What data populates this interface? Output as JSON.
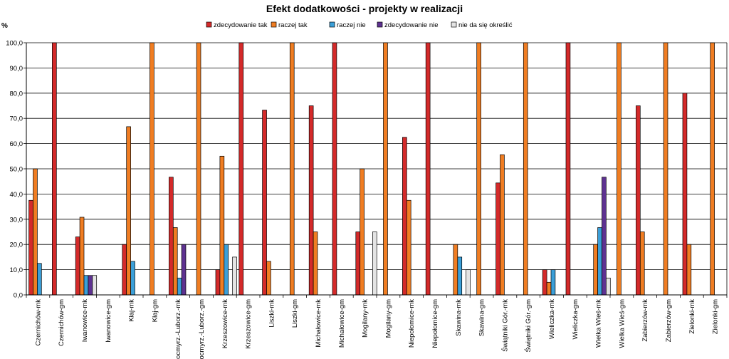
{
  "chart_data": {
    "type": "bar",
    "title": "Efekt dodatkowości - projekty w realizacji",
    "ylabel": "%",
    "xlabel": "",
    "ylim": [
      0,
      100
    ],
    "yticks": [
      "0,0",
      "10,0",
      "20,0",
      "30,0",
      "40,0",
      "50,0",
      "60,0",
      "70,0",
      "80,0",
      "90,0",
      "100,0"
    ],
    "legend_position": "top",
    "categories": [
      "Czernichów-mk",
      "Czernichów-gm",
      "Iwanowice-mk",
      "Iwanowice-gm",
      "Kłaj-mk",
      "Kłaj-gm",
      "Kocmyrz.-Luborz.-mk",
      "Kocmyrz.-Luborz.-gm",
      "Krzeszowice-mk",
      "Krzeszowice-gm",
      "Liszki-mk",
      "Liszki-gm",
      "Michałowice-mk",
      "Michałowice-gm",
      "Mogilany-mk",
      "Mogilany-gm",
      "Niepołomice-mk",
      "Niepołomice-gm",
      "Skawina-mk",
      "Skawina-gm",
      "Świątniki Gór.-mk",
      "Świątniki Gór.-gm",
      "Wieliczka-mk",
      "Wieliczka-gm",
      "Wielka Wieś-mk",
      "Wielka Wieś-gm",
      "Zabierzów-mk",
      "Zabierzów-gm",
      "Zielonki-mk",
      "Zielonki-gm"
    ],
    "series": [
      {
        "name": "zdecydowanie tak",
        "color": "#d42a2a",
        "values": [
          37.5,
          100,
          23,
          0,
          20,
          0,
          46.7,
          0,
          10,
          100,
          73.3,
          0,
          75,
          100,
          25,
          0,
          62.5,
          100,
          0,
          0,
          44.4,
          0,
          10,
          100,
          0,
          0,
          75,
          0,
          80,
          0
        ]
      },
      {
        "name": "raczej tak",
        "color": "#f07d22",
        "values": [
          50,
          0,
          30.8,
          0,
          66.7,
          100,
          26.7,
          100,
          55,
          0,
          13.3,
          100,
          25,
          0,
          50,
          100,
          37.5,
          0,
          20,
          100,
          55.6,
          100,
          5,
          0,
          20,
          100,
          25,
          100,
          20,
          100
        ]
      },
      {
        "name": "raczej nie",
        "color": "#3b9fd8",
        "values": [
          12.5,
          0,
          7.7,
          0,
          13.3,
          0,
          6.7,
          0,
          20,
          0,
          0,
          0,
          0,
          0,
          0,
          0,
          0,
          0,
          15,
          0,
          0,
          0,
          10,
          0,
          26.7,
          0,
          0,
          0,
          0,
          0
        ]
      },
      {
        "name": "zdecydowanie nie",
        "color": "#5e3291",
        "values": [
          0,
          0,
          7.7,
          0,
          0,
          0,
          20,
          0,
          0,
          0,
          0,
          0,
          0,
          0,
          0,
          0,
          0,
          0,
          0,
          0,
          0,
          0,
          0,
          0,
          46.7,
          0,
          0,
          0,
          0,
          0
        ]
      },
      {
        "name": "nie da się określić",
        "color": "#e4e4e4",
        "values": [
          0,
          0,
          7.7,
          0,
          0,
          0,
          0,
          0,
          15,
          0,
          0,
          0,
          0,
          0,
          25,
          0,
          0,
          0,
          10,
          0,
          0,
          0,
          0,
          0,
          6.7,
          0,
          0,
          0,
          0,
          0
        ]
      }
    ]
  }
}
